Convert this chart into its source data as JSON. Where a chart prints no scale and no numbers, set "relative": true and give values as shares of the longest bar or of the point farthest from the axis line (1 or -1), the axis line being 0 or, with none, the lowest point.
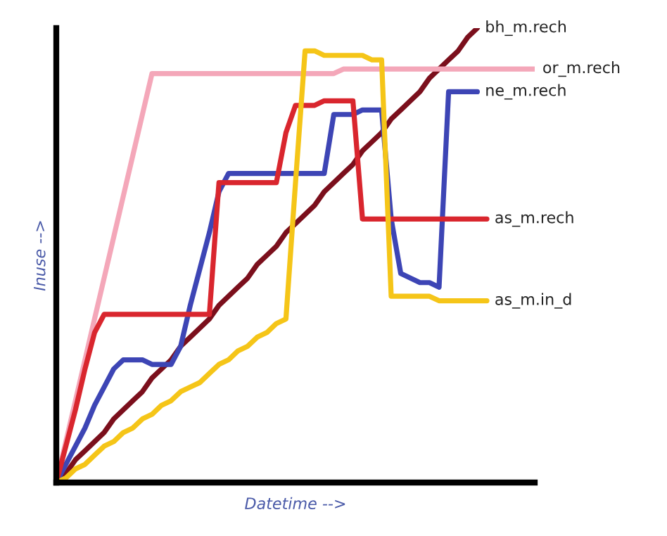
{
  "chart_data": {
    "type": "line",
    "relative": true,
    "xlabel": "Datetime -->",
    "ylabel": "Inuse -->",
    "legend": false,
    "marker": "none",
    "line_style": "solid",
    "categories": [
      null,
      null,
      null,
      null,
      null,
      null,
      null,
      null,
      null,
      null,
      null,
      null,
      null,
      null,
      null,
      null,
      null,
      null,
      null,
      null,
      null,
      null,
      null,
      null,
      null,
      null,
      null,
      null,
      null,
      null,
      null,
      null,
      null,
      null,
      null,
      null,
      null,
      null,
      null,
      null,
      null,
      null,
      null,
      null,
      null,
      null,
      null,
      null,
      null,
      null,
      null
    ],
    "series": [
      {
        "name": "bh_m.rech",
        "color": "#7b0f1c",
        "values": [
          0.0,
          0.02,
          0.05,
          0.07,
          0.09,
          0.11,
          0.14,
          0.16,
          0.18,
          0.2,
          0.23,
          0.25,
          0.27,
          0.3,
          0.32,
          0.34,
          0.36,
          0.39,
          0.41,
          0.43,
          0.45,
          0.48,
          0.5,
          0.52,
          0.55,
          0.57,
          0.59,
          0.61,
          0.64,
          0.66,
          0.68,
          0.7,
          0.73,
          0.75,
          0.77,
          0.8,
          0.82,
          0.84,
          0.86,
          0.89,
          0.91,
          0.93,
          0.95,
          0.98,
          1.0,
          null,
          null,
          null,
          null,
          null,
          null
        ]
      },
      {
        "name": "or_m.rech",
        "color": "#f4a7b9",
        "values": [
          0.0,
          0.09,
          0.18,
          0.27,
          0.36,
          0.45,
          0.54,
          0.63,
          0.72,
          0.81,
          0.9,
          0.9,
          0.9,
          0.9,
          0.9,
          0.9,
          0.9,
          0.9,
          0.9,
          0.9,
          0.9,
          0.9,
          0.9,
          0.9,
          0.9,
          0.9,
          0.9,
          0.9,
          0.9,
          0.9,
          0.91,
          0.91,
          0.91,
          0.91,
          0.91,
          0.91,
          0.91,
          0.91,
          0.91,
          0.91,
          0.91,
          0.91,
          0.91,
          0.91,
          0.91,
          0.91,
          0.91,
          0.91,
          0.91,
          0.91,
          0.91
        ]
      },
      {
        "name": "ne_m.rech",
        "color": "#3d45b5",
        "values": [
          0.0,
          0.04,
          0.08,
          0.12,
          0.17,
          0.21,
          0.25,
          0.27,
          0.27,
          0.27,
          0.26,
          0.26,
          0.26,
          0.3,
          0.39,
          0.47,
          0.55,
          0.64,
          0.68,
          0.68,
          0.68,
          0.68,
          0.68,
          0.68,
          0.68,
          0.68,
          0.68,
          0.68,
          0.68,
          0.81,
          0.81,
          0.81,
          0.82,
          0.82,
          0.82,
          0.58,
          0.46,
          0.45,
          0.44,
          0.44,
          0.43,
          0.86,
          0.86,
          0.86,
          0.86,
          null,
          null,
          null,
          null,
          null,
          null
        ]
      },
      {
        "name": "as_m.rech",
        "color": "#d9262e",
        "values": [
          0.0,
          0.08,
          0.16,
          0.25,
          0.33,
          0.37,
          0.37,
          0.37,
          0.37,
          0.37,
          0.37,
          0.37,
          0.37,
          0.37,
          0.37,
          0.37,
          0.37,
          0.66,
          0.66,
          0.66,
          0.66,
          0.66,
          0.66,
          0.66,
          0.77,
          0.83,
          0.83,
          0.83,
          0.84,
          0.84,
          0.84,
          0.84,
          0.58,
          0.58,
          0.58,
          0.58,
          0.58,
          0.58,
          0.58,
          0.58,
          0.58,
          0.58,
          0.58,
          0.58,
          0.58,
          0.58,
          null,
          null,
          null,
          null,
          null
        ]
      },
      {
        "name": "as_m.in_d",
        "color": "#f5c518",
        "values": [
          0.0,
          0.01,
          0.03,
          0.04,
          0.06,
          0.08,
          0.09,
          0.11,
          0.12,
          0.14,
          0.15,
          0.17,
          0.18,
          0.2,
          0.21,
          0.22,
          0.24,
          0.26,
          0.27,
          0.29,
          0.3,
          0.32,
          0.33,
          0.35,
          0.36,
          0.66,
          0.95,
          0.95,
          0.94,
          0.94,
          0.94,
          0.94,
          0.94,
          0.93,
          0.93,
          0.41,
          0.41,
          0.41,
          0.41,
          0.41,
          0.4,
          0.4,
          0.4,
          0.4,
          0.4,
          0.4,
          null,
          null,
          null,
          null,
          null
        ]
      }
    ]
  }
}
